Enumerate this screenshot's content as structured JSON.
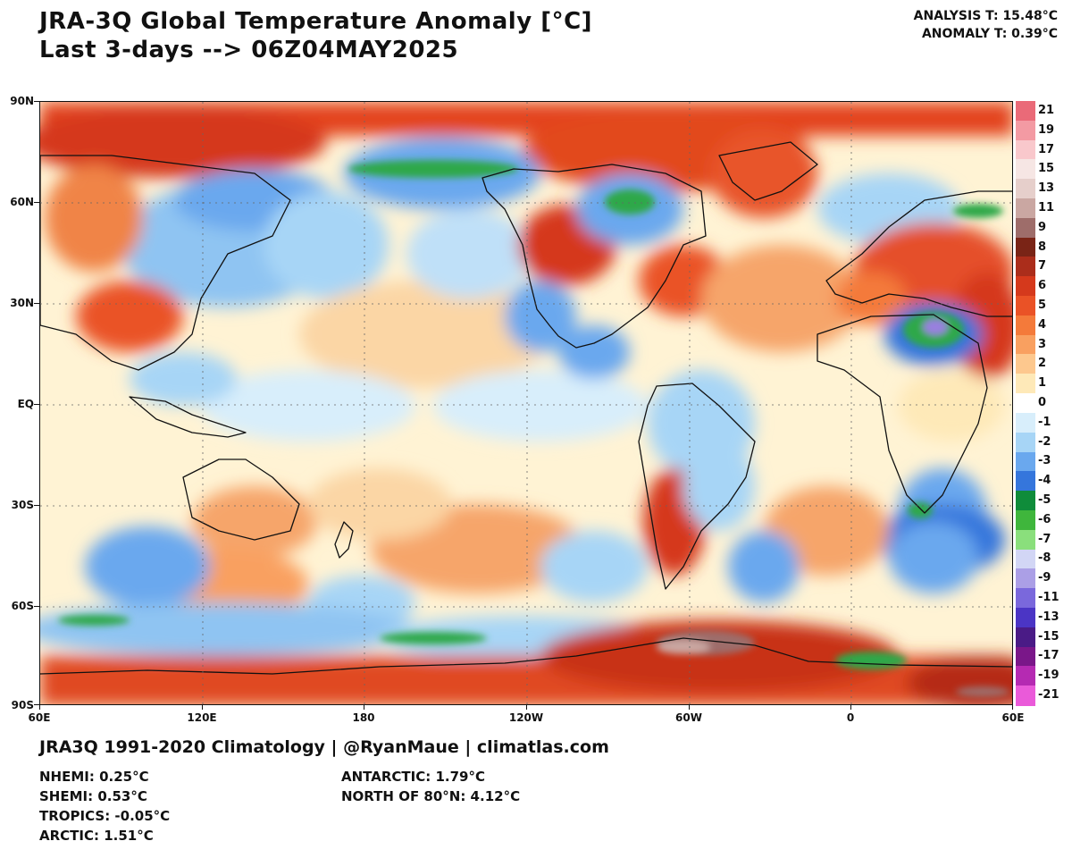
{
  "header": {
    "title_line1": "JRA-3Q Global Temperature Anomaly [°C]",
    "title_line2": "Last 3-days --> 06Z04MAY2025",
    "analysis_t": "ANALYSIS T: 15.48°C",
    "anomaly_t": "ANOMALY T: 0.39°C"
  },
  "map": {
    "lat_labels": [
      "90N",
      "60N",
      "30N",
      "EQ",
      "30S",
      "60S",
      "90S"
    ],
    "lon_labels": [
      "60E",
      "120E",
      "180",
      "120W",
      "60W",
      "0",
      "60E"
    ],
    "projection": "equirectangular, centered on 120°W"
  },
  "colorbar": {
    "levels": [
      "21",
      "19",
      "17",
      "15",
      "13",
      "11",
      "9",
      "8",
      "7",
      "6",
      "5",
      "4",
      "3",
      "2",
      "1",
      "0",
      "-1",
      "-2",
      "-3",
      "-4",
      "-5",
      "-6",
      "-7",
      "-8",
      "-9",
      "-11",
      "-13",
      "-15",
      "-17",
      "-19",
      "-21"
    ],
    "colors": [
      "#ea6a78",
      "#f39aa3",
      "#f9c8cc",
      "#f6e6e4",
      "#e6cfcb",
      "#caa7a2",
      "#9e6d6a",
      "#7a2416",
      "#ab2d1b",
      "#d5391c",
      "#ea5226",
      "#f47a3a",
      "#f9a060",
      "#fdc88e",
      "#fee9b8",
      "#ffffff",
      "#d8eefb",
      "#a7d5f6",
      "#6aa8ee",
      "#3576dc",
      "#0f8c3a",
      "#3fb63c",
      "#8adf7c",
      "#d2d6f5",
      "#ab9fe6",
      "#7a68dc",
      "#4b35c5",
      "#4a1b86",
      "#7a1789",
      "#b52ab2",
      "#ea5ad9"
    ]
  },
  "footer": {
    "credit": "JRA3Q 1991-2020 Climatology | @RyanMaue | climatlas.com",
    "nhemi": "NHEMI: 0.25°C",
    "shemi": "SHEMI: 0.53°C",
    "tropics": "TROPICS: -0.05°C",
    "arctic": "ARCTIC: 1.51°C",
    "antarctic": "ANTARCTIC: 1.79°C",
    "north_of_80n": "NORTH OF 80°N: 4.12°C"
  }
}
